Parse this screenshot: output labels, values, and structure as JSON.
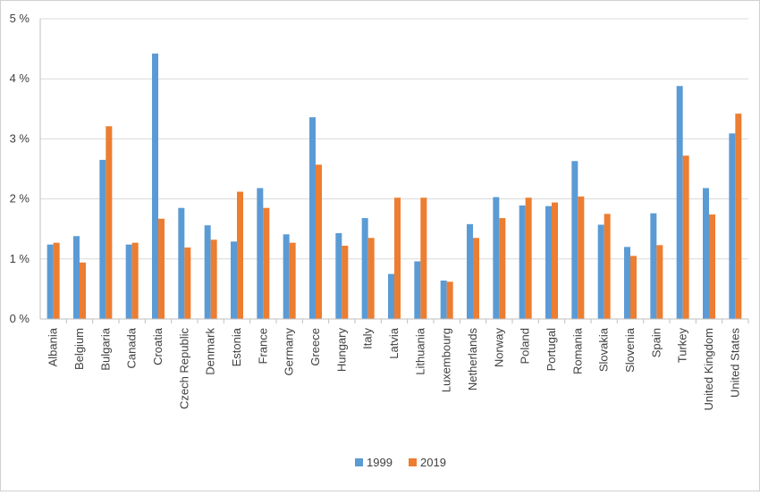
{
  "chart_data": {
    "type": "bar",
    "title": "",
    "xlabel": "",
    "ylabel": "",
    "ylim": [
      0,
      5
    ],
    "yticks": [
      "0 %",
      "1 %",
      "2 %",
      "3 %",
      "4 %",
      "5 %"
    ],
    "grid": true,
    "legend_position": "bottom-center",
    "categories": [
      "Albania",
      "Belgium",
      "Bulgaria",
      "Canada",
      "Croatia",
      "Czech Republic",
      "Denmark",
      "Estonia",
      "France",
      "Germany",
      "Greece",
      "Hungary",
      "Italy",
      "Latvia",
      "Lithuania",
      "Luxembourg",
      "Netherlands",
      "Norway",
      "Poland",
      "Portugal",
      "Romania",
      "Slovakia",
      "Slovenia",
      "Spain",
      "Turkey",
      "United Kingdom",
      "United States"
    ],
    "series": [
      {
        "name": "1999",
        "color": "#5b9bd5",
        "values": [
          1.24,
          1.38,
          2.65,
          1.24,
          4.42,
          1.85,
          1.56,
          1.29,
          2.18,
          1.41,
          3.36,
          1.43,
          1.68,
          0.75,
          0.96,
          0.64,
          1.58,
          2.03,
          1.89,
          1.88,
          2.63,
          1.57,
          1.2,
          1.76,
          3.88,
          2.18,
          3.09
        ]
      },
      {
        "name": "2019",
        "color": "#ed7d31",
        "values": [
          1.27,
          0.94,
          3.21,
          1.27,
          1.67,
          1.19,
          1.32,
          2.12,
          1.85,
          1.27,
          2.57,
          1.22,
          1.35,
          2.02,
          2.02,
          0.62,
          1.35,
          1.68,
          2.02,
          1.94,
          2.04,
          1.75,
          1.05,
          1.23,
          2.72,
          1.74,
          3.42
        ]
      }
    ]
  }
}
